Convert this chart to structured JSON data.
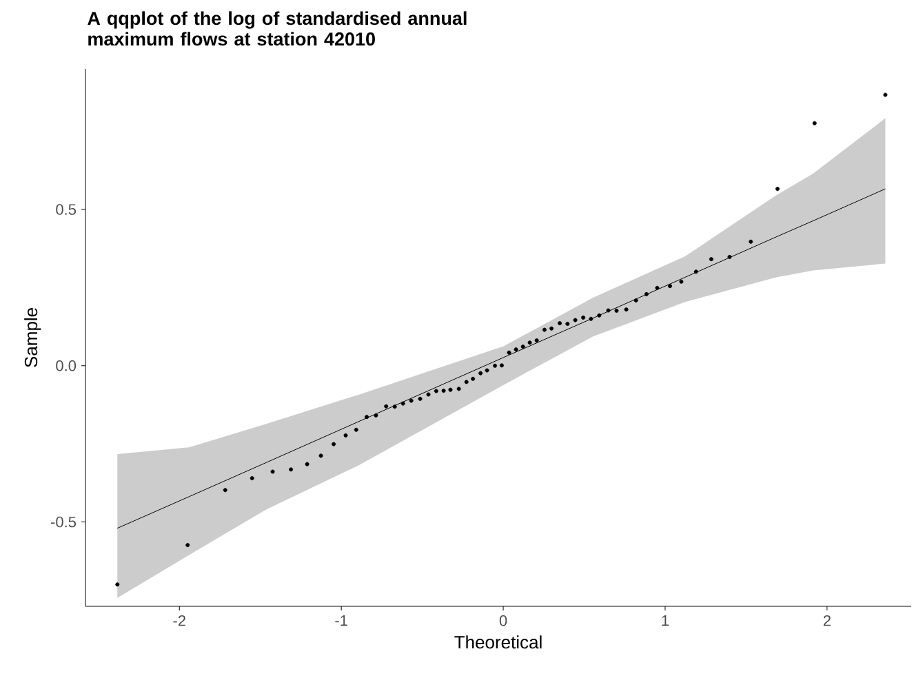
{
  "chart_data": {
    "type": "scatter",
    "title": "A qqplot of the log of standardised annual maximum flows at station 42010",
    "xlabel": "Theoretical",
    "ylabel": "Sample",
    "xlim": [
      -2.58,
      2.52
    ],
    "ylim": [
      -0.77,
      0.95
    ],
    "xticks": [
      -2,
      -1,
      0,
      1,
      2
    ],
    "yticks": [
      -0.5,
      {
        "value": 0,
        "label": "0.0"
      },
      0.5
    ],
    "series": [
      {
        "type": "line",
        "color": "#000000",
        "marker": "none",
        "x": [
          -2.383,
          -1.94,
          -1.464,
          -0.894,
          0,
          0.553,
          1.123,
          1.685,
          1.915,
          2.36
        ],
        "values": [
          -0.52,
          -0.419,
          -0.31,
          -0.179,
          0.026,
          0.152,
          0.283,
          0.412,
          0.464,
          0.566
        ],
        "lower": [
          -0.743,
          -0.606,
          -0.46,
          -0.319,
          -0.062,
          0.093,
          0.204,
          0.283,
          0.305,
          0.327
        ],
        "upper": [
          -0.283,
          -0.261,
          -0.186,
          -0.093,
          0.062,
          0.217,
          0.35,
          0.545,
          0.615,
          0.792
        ]
      },
      {
        "color": "#000000",
        "marker": "circle",
        "x": [
          -2.383,
          -1.949,
          -1.717,
          -1.551,
          -1.424,
          -1.311,
          -1.211,
          -1.126,
          -1.047,
          -0.973,
          -0.908,
          -0.843,
          -0.786,
          -0.723,
          -0.67,
          -0.619,
          -0.568,
          -0.513,
          -0.462,
          -0.414,
          -0.368,
          -0.326,
          -0.274,
          -0.227,
          -0.187,
          -0.14,
          -0.1,
          -0.051,
          -0.009,
          0.036,
          0.079,
          0.122,
          0.164,
          0.207,
          0.255,
          0.298,
          0.349,
          0.397,
          0.445,
          0.494,
          0.542,
          0.593,
          0.649,
          0.7,
          0.76,
          0.82,
          0.885,
          0.951,
          1.03,
          1.1,
          1.191,
          1.285,
          1.398,
          1.529,
          1.694,
          1.923,
          2.36
        ],
        "values": [
          -0.7,
          -0.574,
          -0.398,
          -0.36,
          -0.339,
          -0.332,
          -0.315,
          -0.288,
          -0.251,
          -0.223,
          -0.205,
          -0.164,
          -0.159,
          -0.13,
          -0.131,
          -0.121,
          -0.112,
          -0.106,
          -0.092,
          -0.081,
          -0.08,
          -0.077,
          -0.074,
          -0.052,
          -0.042,
          -0.024,
          -0.015,
          0,
          0.001,
          0.042,
          0.052,
          0.061,
          0.074,
          0.081,
          0.115,
          0.119,
          0.136,
          0.134,
          0.146,
          0.154,
          0.15,
          0.161,
          0.177,
          0.176,
          0.18,
          0.209,
          0.229,
          0.249,
          0.255,
          0.269,
          0.301,
          0.341,
          0.348,
          0.397,
          0.566,
          0.776,
          0.867
        ]
      }
    ]
  }
}
